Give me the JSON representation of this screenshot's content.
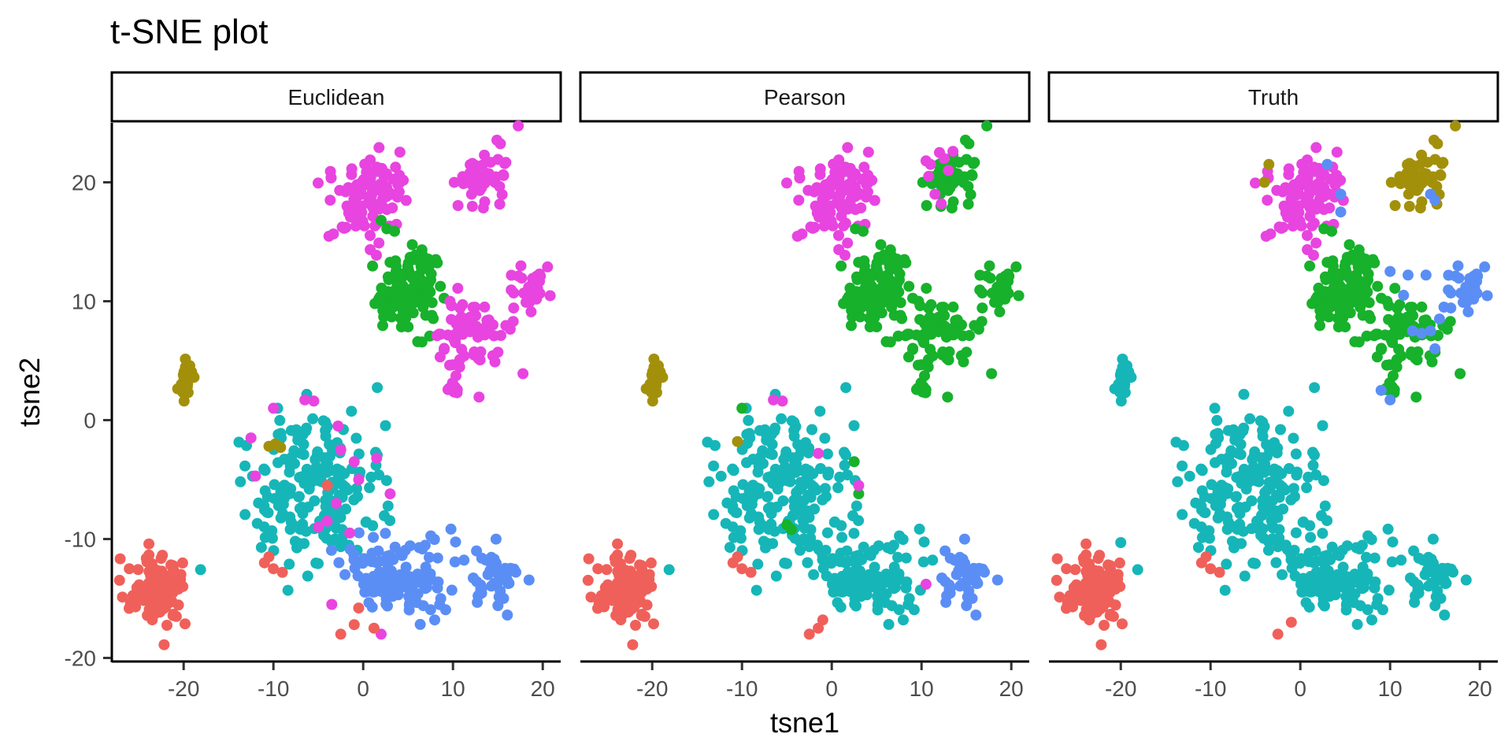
{
  "chart_data": {
    "type": "scatter",
    "title": "t-SNE plot",
    "xlabel": "tsne1",
    "ylabel": "tsne2",
    "xlim": [
      -28,
      22
    ],
    "ylim": [
      -20.3,
      25
    ],
    "x_ticks": [
      -20,
      -10,
      0,
      10,
      20
    ],
    "y_ticks": [
      -20,
      -10,
      0,
      10,
      20
    ],
    "x_tick_labels": [
      "-20",
      "-10",
      "0",
      "10",
      "20"
    ],
    "y_tick_labels": [
      "-20",
      "-10",
      "0",
      "10",
      "20"
    ],
    "grid": false,
    "legend": "none",
    "colors": {
      "c1": "#F8766D",
      "c2": "#A3A500",
      "c3": "#00BF7D",
      "c4": "#00B0F6",
      "c5": "#E76BF3",
      "red": "#F0605A",
      "olive": "#A3900A",
      "green": "#17B12B",
      "teal": "#16B6B8",
      "blue": "#5B8EF5",
      "magenta": "#E844E0"
    },
    "clusters": [
      {
        "id": "A",
        "cx": -22.5,
        "cy": -14.3,
        "sx": 1.7,
        "sy": 1.4,
        "n": 95
      },
      {
        "id": "B",
        "cx": -19.6,
        "cy": 3.5,
        "sx": 0.5,
        "sy": 0.9,
        "n": 24
      },
      {
        "id": "C",
        "cx": 0.5,
        "cy": 19,
        "sx": 2.2,
        "sy": 1.9,
        "n": 95
      },
      {
        "id": "D",
        "cx": 13.5,
        "cy": 20.3,
        "sx": 1.8,
        "sy": 1.3,
        "n": 45
      },
      {
        "id": "E",
        "cx": 5.5,
        "cy": 11,
        "sx": 1.9,
        "sy": 2.0,
        "n": 110
      },
      {
        "id": "F",
        "cx": 12,
        "cy": 7.5,
        "sx": 2.3,
        "sy": 1.7,
        "n": 65
      },
      {
        "id": "G",
        "cx": 18.5,
        "cy": 11,
        "sx": 1.2,
        "sy": 1.0,
        "n": 30
      },
      {
        "id": "H",
        "cx": 9.8,
        "cy": 2.7,
        "sx": 0.5,
        "sy": 0.8,
        "n": 10
      },
      {
        "id": "I",
        "cx": -5.5,
        "cy": -5.5,
        "sx": 4.0,
        "sy": 3.2,
        "n": 200
      },
      {
        "id": "J",
        "cx": 4.0,
        "cy": -13.0,
        "sx": 3.2,
        "sy": 1.7,
        "n": 120
      },
      {
        "id": "K",
        "cx": 14.5,
        "cy": -13.5,
        "sx": 1.5,
        "sy": 1.2,
        "n": 45
      }
    ],
    "panels": [
      {
        "strip": "Euclidean",
        "assign": {
          "A": "red",
          "B": "olive",
          "C": "magenta",
          "D": "magenta",
          "E": "green",
          "F": "magenta",
          "G": "magenta",
          "H": "magenta",
          "I": "teal",
          "J": "blue",
          "K": "blue"
        },
        "extras": [
          {
            "x": -10.5,
            "y": -2.2,
            "c": "olive"
          },
          {
            "x": -9.8,
            "y": -2.0,
            "c": "olive"
          },
          {
            "x": -9.2,
            "y": -2.3,
            "c": "olive"
          },
          {
            "x": -12.5,
            "y": -1.5,
            "c": "magenta"
          },
          {
            "x": -10.0,
            "y": 1.0,
            "c": "magenta"
          },
          {
            "x": -6.5,
            "y": 1.7,
            "c": "magenta"
          },
          {
            "x": -5.5,
            "y": 1.6,
            "c": "magenta"
          },
          {
            "x": -2.5,
            "y": -2.5,
            "c": "magenta"
          },
          {
            "x": -1.0,
            "y": -3.5,
            "c": "magenta"
          },
          {
            "x": -3.0,
            "y": -7.0,
            "c": "magenta"
          },
          {
            "x": 1.5,
            "y": -3.2,
            "c": "magenta"
          },
          {
            "x": 3.0,
            "y": -6.2,
            "c": "magenta"
          },
          {
            "x": -12.0,
            "y": -4.7,
            "c": "magenta"
          },
          {
            "x": -5.0,
            "y": -9.0,
            "c": "magenta"
          },
          {
            "x": -4.0,
            "y": -8.5,
            "c": "magenta"
          },
          {
            "x": -0.5,
            "y": -5.0,
            "c": "magenta"
          },
          {
            "x": 2.0,
            "y": -18.0,
            "c": "magenta"
          },
          {
            "x": -3.5,
            "y": -15.5,
            "c": "magenta"
          },
          {
            "x": -2.8,
            "y": -0.5,
            "c": "magenta"
          },
          {
            "x": -1.5,
            "y": -9.5,
            "c": "magenta"
          },
          {
            "x": 2.0,
            "y": 16.8,
            "c": "green"
          },
          {
            "x": -10.5,
            "y": -11.5,
            "c": "red"
          },
          {
            "x": -11.0,
            "y": -12.0,
            "c": "red"
          },
          {
            "x": -10.0,
            "y": -12.5,
            "c": "red"
          },
          {
            "x": -9.0,
            "y": -12.8,
            "c": "red"
          },
          {
            "x": -4.0,
            "y": -5.5,
            "c": "red"
          },
          {
            "x": -0.5,
            "y": -15.8,
            "c": "red"
          },
          {
            "x": -1.0,
            "y": -17.2,
            "c": "red"
          },
          {
            "x": -2.5,
            "y": -18.0,
            "c": "red"
          },
          {
            "x": 1.2,
            "y": -17.5,
            "c": "red"
          }
        ]
      },
      {
        "strip": "Pearson",
        "assign": {
          "A": "red",
          "B": "olive",
          "C": "magenta",
          "D": "green",
          "E": "green",
          "F": "green",
          "G": "green",
          "H": "green",
          "I": "teal",
          "J": "teal",
          "K": "blue"
        },
        "extras": [
          {
            "x": 12.0,
            "y": 22.5,
            "c": "magenta"
          },
          {
            "x": 11.0,
            "y": 21.5,
            "c": "magenta"
          },
          {
            "x": 13.0,
            "y": 21.0,
            "c": "magenta"
          },
          {
            "x": 10.8,
            "y": 20.5,
            "c": "magenta"
          },
          {
            "x": 12.5,
            "y": 22.0,
            "c": "magenta"
          },
          {
            "x": 11.5,
            "y": 19.0,
            "c": "magenta"
          },
          {
            "x": 10.5,
            "y": 21.8,
            "c": "magenta"
          },
          {
            "x": 13.5,
            "y": 22.6,
            "c": "magenta"
          },
          {
            "x": 12.2,
            "y": 18.2,
            "c": "magenta"
          },
          {
            "x": -10.0,
            "y": 1.0,
            "c": "green"
          },
          {
            "x": -5.0,
            "y": -8.8,
            "c": "green"
          },
          {
            "x": -4.5,
            "y": -9.2,
            "c": "green"
          },
          {
            "x": 2.5,
            "y": -3.5,
            "c": "green"
          },
          {
            "x": 3.0,
            "y": -6.2,
            "c": "green"
          },
          {
            "x": -10.5,
            "y": -1.8,
            "c": "olive"
          },
          {
            "x": -6.5,
            "y": 1.7,
            "c": "magenta"
          },
          {
            "x": -5.5,
            "y": 1.6,
            "c": "magenta"
          },
          {
            "x": -1.5,
            "y": -2.8,
            "c": "magenta"
          },
          {
            "x": 3.0,
            "y": -5.5,
            "c": "magenta"
          },
          {
            "x": 10.5,
            "y": -13.8,
            "c": "magenta"
          },
          {
            "x": -10.5,
            "y": -11.5,
            "c": "red"
          },
          {
            "x": -11.0,
            "y": -12.0,
            "c": "red"
          },
          {
            "x": -10.0,
            "y": -12.5,
            "c": "red"
          },
          {
            "x": -9.0,
            "y": -12.8,
            "c": "red"
          },
          {
            "x": -1.0,
            "y": -16.8,
            "c": "red"
          },
          {
            "x": -1.5,
            "y": -17.5,
            "c": "red"
          },
          {
            "x": -2.5,
            "y": -18.0,
            "c": "red"
          }
        ]
      },
      {
        "strip": "Truth",
        "assign": {
          "A": "red",
          "B": "teal",
          "C": "magenta",
          "D": "olive",
          "E": "green",
          "F": "green",
          "G": "blue",
          "H": "green",
          "I": "teal",
          "J": "teal",
          "K": "teal"
        },
        "extras": [
          {
            "x": 3.0,
            "y": 21.5,
            "c": "blue"
          },
          {
            "x": 4.5,
            "y": 19.0,
            "c": "blue"
          },
          {
            "x": 4.5,
            "y": 17.5,
            "c": "blue"
          },
          {
            "x": 14.5,
            "y": 19.0,
            "c": "blue"
          },
          {
            "x": 15.0,
            "y": 18.5,
            "c": "blue"
          },
          {
            "x": 10.0,
            "y": 12.5,
            "c": "blue"
          },
          {
            "x": 12.0,
            "y": 12.2,
            "c": "blue"
          },
          {
            "x": 14.0,
            "y": 12.2,
            "c": "blue"
          },
          {
            "x": 11.5,
            "y": 10.5,
            "c": "blue"
          },
          {
            "x": 12.5,
            "y": 7.5,
            "c": "blue"
          },
          {
            "x": 13.5,
            "y": 7.3,
            "c": "blue"
          },
          {
            "x": 14.5,
            "y": 7.5,
            "c": "blue"
          },
          {
            "x": 15.5,
            "y": 8.5,
            "c": "blue"
          },
          {
            "x": 15.0,
            "y": 6.0,
            "c": "blue"
          },
          {
            "x": 16.0,
            "y": 9.5,
            "c": "blue"
          },
          {
            "x": 9.0,
            "y": 2.5,
            "c": "blue"
          },
          {
            "x": 10.0,
            "y": 1.7,
            "c": "blue"
          },
          {
            "x": -3.5,
            "y": 21.5,
            "c": "olive"
          },
          {
            "x": -4.0,
            "y": 20.0,
            "c": "olive"
          },
          {
            "x": -1.0,
            "y": -17.0,
            "c": "red"
          },
          {
            "x": -2.5,
            "y": -18.0,
            "c": "red"
          },
          {
            "x": -20.0,
            "y": -10.3,
            "c": "teal"
          },
          {
            "x": -10.5,
            "y": -11.5,
            "c": "red"
          },
          {
            "x": -11.0,
            "y": -12.0,
            "c": "red"
          },
          {
            "x": -10.0,
            "y": -12.5,
            "c": "red"
          },
          {
            "x": -9.0,
            "y": -12.8,
            "c": "red"
          }
        ]
      }
    ]
  }
}
